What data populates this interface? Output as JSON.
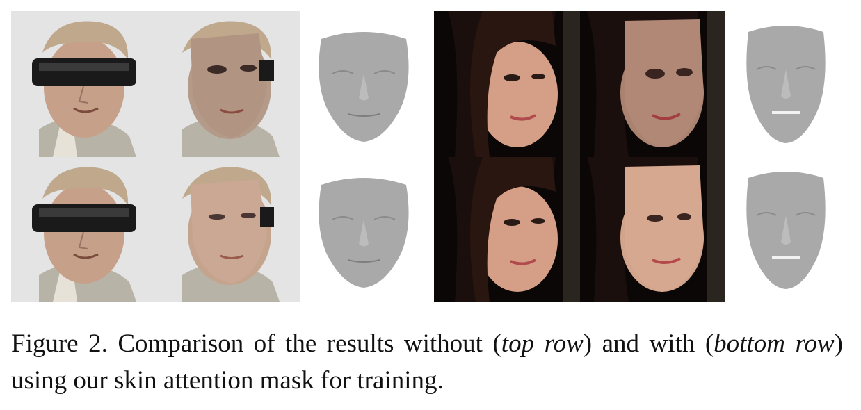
{
  "caption": {
    "label": "Figure 2.",
    "text_1": " Comparison of the results without (",
    "top_row": "top row",
    "text_2": ") and with (",
    "bottom_row": "bottom row",
    "text_3": ") using our skin attention mask for training."
  },
  "colors": {
    "background_man": "#e6e6e6",
    "background_woman": "#0a0605",
    "skin_man": "#c9a893",
    "skin_woman": "#d8a48a",
    "mesh_gray": "#a7a7a7"
  }
}
